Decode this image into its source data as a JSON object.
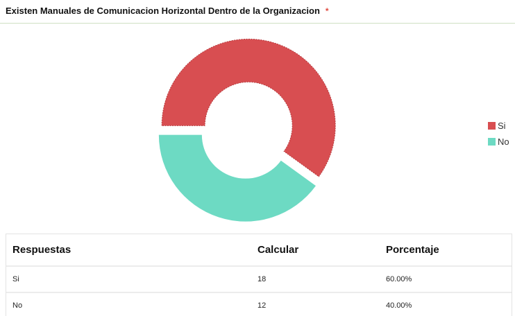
{
  "question": {
    "title": "Existen Manuales de Comunicacion Horizontal Dentro de la Organizacion",
    "required_mark": "*"
  },
  "chart_data": {
    "type": "pie",
    "variant": "donut",
    "title": "Existen Manuales de Comunicacion Horizontal Dentro de la Organizacion",
    "categories": [
      "Si",
      "No"
    ],
    "values": [
      18,
      12
    ],
    "percentages": [
      "60.00%",
      "40.00%"
    ],
    "colors": [
      "#d84e51",
      "#6ddac3"
    ],
    "exploded": true,
    "legend_position": "right"
  },
  "table": {
    "headers": [
      "Respuestas",
      "Calcular",
      "Porcentaje"
    ],
    "rows": [
      [
        "Si",
        "18",
        "60.00%"
      ],
      [
        "No",
        "12",
        "40.00%"
      ]
    ]
  }
}
